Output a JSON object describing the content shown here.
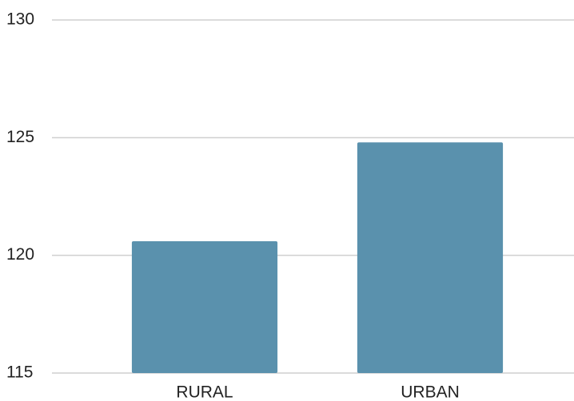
{
  "chart_data": {
    "type": "bar",
    "categories": [
      "RURAL",
      "URBAN"
    ],
    "values": [
      120.6,
      124.8
    ],
    "color": "#5a91ad",
    "ylim": [
      115,
      130
    ],
    "yticks": [
      115,
      120,
      125,
      130
    ],
    "grid": true
  }
}
